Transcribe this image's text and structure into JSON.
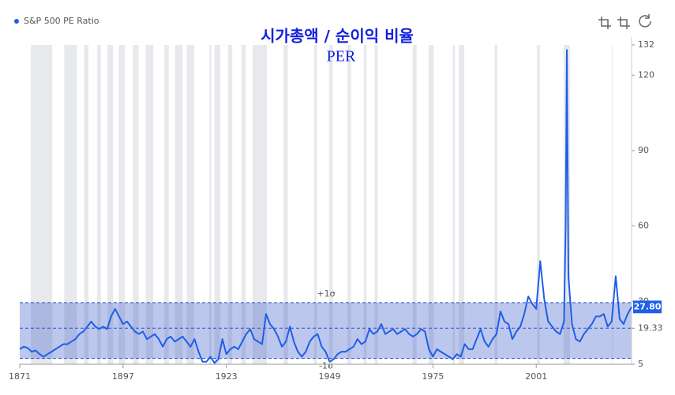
{
  "chart_data": {
    "type": "line",
    "title": "시가총액 / 순이익 비율",
    "subtitle": "PER",
    "x": [
      1871,
      1872,
      1873,
      1874,
      1875,
      1876,
      1877,
      1878,
      1879,
      1880,
      1881,
      1882,
      1883,
      1884,
      1885,
      1886,
      1887,
      1888,
      1889,
      1890,
      1891,
      1892,
      1893,
      1894,
      1895,
      1896,
      1897,
      1898,
      1899,
      1900,
      1901,
      1902,
      1903,
      1904,
      1905,
      1906,
      1907,
      1908,
      1909,
      1910,
      1911,
      1912,
      1913,
      1914,
      1915,
      1916,
      1917,
      1918,
      1919,
      1920,
      1921,
      1922,
      1923,
      1924,
      1925,
      1926,
      1927,
      1928,
      1929,
      1930,
      1931,
      1932,
      1933,
      1934,
      1935,
      1936,
      1937,
      1938,
      1939,
      1940,
      1941,
      1942,
      1943,
      1944,
      1945,
      1946,
      1947,
      1948,
      1949,
      1950,
      1951,
      1952,
      1953,
      1954,
      1955,
      1956,
      1957,
      1958,
      1959,
      1960,
      1961,
      1962,
      1963,
      1964,
      1965,
      1966,
      1967,
      1968,
      1969,
      1970,
      1971,
      1972,
      1973,
      1974,
      1975,
      1976,
      1977,
      1978,
      1979,
      1980,
      1981,
      1982,
      1983,
      1984,
      1985,
      1986,
      1987,
      1988,
      1989,
      1990,
      1991,
      1992,
      1993,
      1994,
      1995,
      1996,
      1997,
      1998,
      1999,
      2000,
      2001,
      2002,
      2003,
      2004,
      2005,
      2006,
      2007,
      2008,
      2008.4,
      2008.7,
      2009.1,
      2010,
      2011,
      2012,
      2013,
      2014,
      2015,
      2016,
      2017,
      2018,
      2019,
      2020,
      2021,
      2022,
      2023,
      2024,
      2025
    ],
    "series": [
      {
        "name": "S&P 500 PE Ratio",
        "color": "#1f5ee8",
        "values": [
          11,
          12,
          11.5,
          10,
          10.5,
          9,
          8,
          9,
          10,
          11,
          12,
          13,
          13,
          14,
          15,
          17,
          18,
          20,
          22,
          20,
          19,
          20,
          19,
          24,
          27,
          24,
          21,
          22,
          20,
          18,
          17,
          18,
          15,
          16,
          17,
          15,
          12,
          15,
          16,
          14,
          15,
          16,
          14,
          12,
          15,
          10,
          6,
          6,
          8,
          5.5,
          7,
          15,
          9,
          11,
          12,
          11,
          14,
          17,
          19,
          15,
          14,
          13,
          25,
          21,
          19,
          16,
          12,
          14,
          20,
          14,
          10,
          8,
          10,
          14,
          16,
          17,
          12,
          10,
          6,
          7,
          9,
          10,
          10,
          11,
          12,
          15,
          13,
          14,
          19,
          17,
          18,
          21,
          17,
          18,
          19,
          17,
          18,
          19,
          17,
          16,
          17,
          19,
          18,
          11,
          8,
          11,
          10,
          9,
          8,
          7,
          9,
          8,
          13,
          11,
          11,
          15,
          19,
          14,
          12,
          15,
          17,
          26,
          22,
          21,
          15,
          18,
          20,
          25,
          32,
          29,
          27,
          46,
          31,
          22,
          20,
          18,
          17,
          22,
          60,
          130,
          40,
          21,
          15,
          14,
          17,
          19,
          21,
          24,
          24,
          25,
          20,
          22,
          40,
          23,
          21,
          25,
          27.8
        ]
      }
    ],
    "shaded_periods": [
      [
        1873.8,
        1879.2
      ],
      [
        1882.2,
        1885.4
      ],
      [
        1887.2,
        1888.3
      ],
      [
        1890.5,
        1891.4
      ],
      [
        1893.1,
        1894.5
      ],
      [
        1895.9,
        1897.5
      ],
      [
        1899.5,
        1900.9
      ],
      [
        1902.7,
        1904.6
      ],
      [
        1907.4,
        1908.5
      ],
      [
        1910.1,
        1912.0
      ],
      [
        1913.0,
        1914.9
      ],
      [
        1918.7,
        1919.2
      ],
      [
        1920.0,
        1921.5
      ],
      [
        1923.4,
        1924.5
      ],
      [
        1926.8,
        1927.9
      ],
      [
        1929.6,
        1933.2
      ],
      [
        1937.4,
        1938.5
      ],
      [
        1945.1,
        1945.8
      ],
      [
        1948.9,
        1949.8
      ],
      [
        1953.5,
        1954.4
      ],
      [
        1957.6,
        1958.3
      ],
      [
        1960.3,
        1961.1
      ],
      [
        1969.9,
        1970.9
      ],
      [
        1973.9,
        1975.2
      ],
      [
        1980.0,
        1980.5
      ],
      [
        1981.5,
        1982.9
      ],
      [
        1990.5,
        1991.2
      ],
      [
        2001.2,
        2001.9
      ],
      [
        2007.9,
        2009.5
      ],
      [
        2020.1,
        2020.3
      ]
    ],
    "sigma_band": {
      "upper": 29.5,
      "lower": 7.3,
      "mean": 19.33,
      "upper_label": "+1σ",
      "lower_label": "-1σ"
    },
    "last_value_label": {
      "value": 27.8,
      "label": "27.80"
    },
    "xlim": [
      1871,
      2025
    ],
    "xticks": [
      1871,
      1897,
      1923,
      1949,
      1975,
      2001
    ],
    "ylim": [
      5,
      132
    ],
    "yticks": [
      5,
      19.33,
      30,
      60,
      90,
      120,
      132
    ],
    "shade_color": "#e8e9ec",
    "band_color": "#3050c8"
  }
}
